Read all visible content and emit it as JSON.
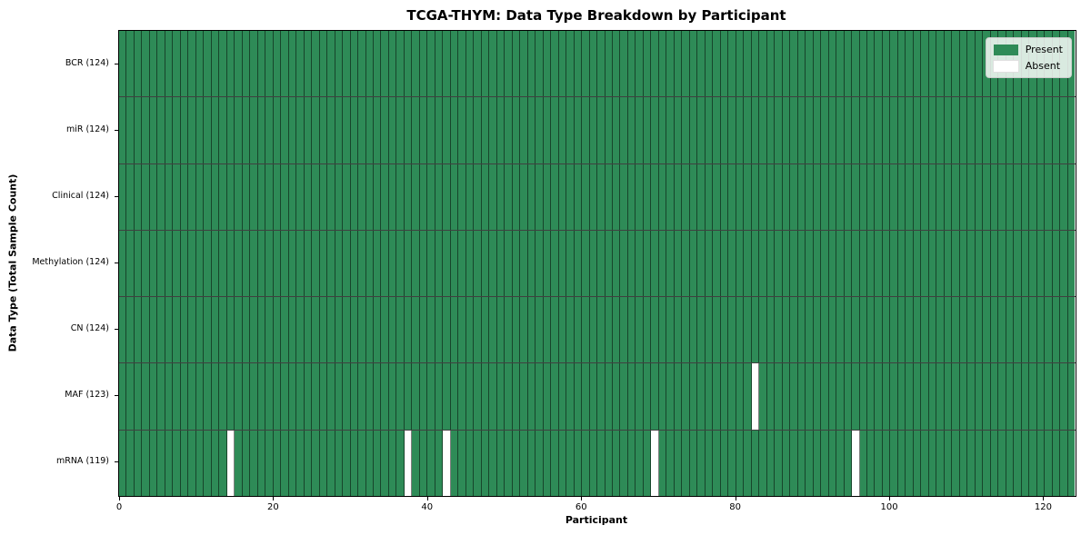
{
  "chart_data": {
    "type": "heatmap",
    "title": "TCGA-THYM: Data Type Breakdown by Participant",
    "xlabel": "Participant",
    "ylabel": "Data Type (Total Sample Count)",
    "n_participants": 124,
    "x_axis_range": [
      0,
      124
    ],
    "x_ticks": [
      0,
      20,
      40,
      60,
      80,
      100,
      120
    ],
    "rows": [
      {
        "label": "BCR (124)",
        "data_type": "BCR",
        "present_count": 124,
        "absent_participants": []
      },
      {
        "label": "miR (124)",
        "data_type": "miR",
        "present_count": 124,
        "absent_participants": []
      },
      {
        "label": "Clinical (124)",
        "data_type": "Clinical",
        "present_count": 124,
        "absent_participants": []
      },
      {
        "label": "Methylation (124)",
        "data_type": "Methylation",
        "present_count": 124,
        "absent_participants": []
      },
      {
        "label": "CN (124)",
        "data_type": "CN",
        "present_count": 124,
        "absent_participants": []
      },
      {
        "label": "MAF (123)",
        "data_type": "MAF",
        "present_count": 123,
        "absent_participants": [
          82
        ]
      },
      {
        "label": "mRNA (119)",
        "data_type": "mRNA",
        "present_count": 119,
        "absent_participants": [
          14,
          37,
          42,
          69,
          95
        ]
      }
    ],
    "legend": [
      {
        "label": "Present",
        "color": "#2e8b57"
      },
      {
        "label": "Absent",
        "color": "#ffffff"
      }
    ],
    "colors": {
      "present": "#2e8b57",
      "absent": "#ffffff",
      "cell_edge": "rgba(0,0,0,0.5)",
      "row_divider": "rgba(0,0,0,0.75)",
      "frame": "#000000"
    },
    "layout_hints": {
      "legend_position": "upper right",
      "grid": "cell-borders",
      "title_bold": true,
      "axis_labels_bold": true
    }
  }
}
